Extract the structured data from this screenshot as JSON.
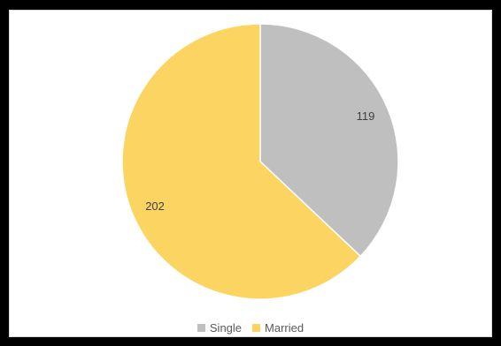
{
  "chart_data": {
    "type": "pie",
    "categories": [
      "Single",
      "Married"
    ],
    "values": [
      119,
      202
    ],
    "colors": [
      "#bfbfbf",
      "#fcd462"
    ],
    "data_labels": [
      "119",
      "202"
    ],
    "start_angle_deg": 0,
    "direction": "clockwise",
    "legend_position": "bottom"
  }
}
